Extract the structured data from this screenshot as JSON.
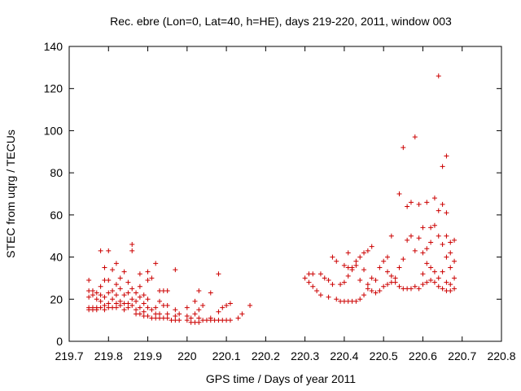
{
  "chart_data": {
    "type": "scatter",
    "title": "Rec. ebre (Lon=0, Lat=40, h=HE), days 219-220, 2011, window 003",
    "xlabel": "GPS time / Days of year 2011",
    "ylabel": "STEC from uqrg / TECUs",
    "xlim": [
      219.7,
      220.8
    ],
    "ylim": [
      0,
      140
    ],
    "xticks": [
      "219.7",
      "219.8",
      "219.9",
      "220",
      "220.1",
      "220.2",
      "220.3",
      "220.4",
      "220.5",
      "220.6",
      "220.7",
      "220.8"
    ],
    "yticks": [
      "0",
      "20",
      "40",
      "60",
      "80",
      "100",
      "120",
      "140"
    ],
    "grid": false,
    "marker": "+",
    "color": "#cc0000",
    "series": [
      {
        "values": [
          [
            219.75,
            29
          ],
          [
            219.75,
            24
          ],
          [
            219.75,
            21
          ],
          [
            219.75,
            16
          ],
          [
            219.75,
            15
          ],
          [
            219.76,
            24
          ],
          [
            219.76,
            22
          ],
          [
            219.76,
            16
          ],
          [
            219.76,
            15
          ],
          [
            219.77,
            23
          ],
          [
            219.77,
            20
          ],
          [
            219.77,
            16
          ],
          [
            219.77,
            15
          ],
          [
            219.78,
            43
          ],
          [
            219.78,
            26
          ],
          [
            219.78,
            22
          ],
          [
            219.78,
            19
          ],
          [
            219.78,
            16
          ],
          [
            219.79,
            35
          ],
          [
            219.79,
            29
          ],
          [
            219.79,
            21
          ],
          [
            219.79,
            17
          ],
          [
            219.79,
            15
          ],
          [
            219.8,
            43
          ],
          [
            219.8,
            29
          ],
          [
            219.8,
            23
          ],
          [
            219.8,
            18
          ],
          [
            219.8,
            16
          ],
          [
            219.81,
            34
          ],
          [
            219.81,
            24
          ],
          [
            219.81,
            20
          ],
          [
            219.81,
            16
          ],
          [
            219.82,
            37
          ],
          [
            219.82,
            27
          ],
          [
            219.82,
            22
          ],
          [
            219.82,
            18
          ],
          [
            219.82,
            16
          ],
          [
            219.83,
            30
          ],
          [
            219.83,
            25
          ],
          [
            219.83,
            19
          ],
          [
            219.83,
            17
          ],
          [
            219.84,
            33
          ],
          [
            219.84,
            22
          ],
          [
            219.84,
            18
          ],
          [
            219.84,
            15
          ],
          [
            219.85,
            28
          ],
          [
            219.85,
            23
          ],
          [
            219.85,
            18
          ],
          [
            219.85,
            16
          ],
          [
            219.86,
            46
          ],
          [
            219.86,
            43
          ],
          [
            219.86,
            25
          ],
          [
            219.86,
            20
          ],
          [
            219.86,
            17
          ],
          [
            219.87,
            23
          ],
          [
            219.87,
            19
          ],
          [
            219.87,
            15
          ],
          [
            219.87,
            13
          ],
          [
            219.88,
            32
          ],
          [
            219.88,
            26
          ],
          [
            219.88,
            21
          ],
          [
            219.88,
            16
          ],
          [
            219.88,
            13
          ],
          [
            219.89,
            22
          ],
          [
            219.89,
            18
          ],
          [
            219.89,
            14
          ],
          [
            219.89,
            12
          ],
          [
            219.9,
            33
          ],
          [
            219.9,
            29
          ],
          [
            219.9,
            20
          ],
          [
            219.9,
            16
          ],
          [
            219.9,
            12
          ],
          [
            219.91,
            30
          ],
          [
            219.91,
            15
          ],
          [
            219.91,
            11
          ],
          [
            219.92,
            37
          ],
          [
            219.92,
            16
          ],
          [
            219.92,
            13
          ],
          [
            219.92,
            11
          ],
          [
            219.93,
            24
          ],
          [
            219.93,
            19
          ],
          [
            219.93,
            13
          ],
          [
            219.93,
            11
          ],
          [
            219.94,
            24
          ],
          [
            219.94,
            17
          ],
          [
            219.94,
            11
          ],
          [
            219.95,
            24
          ],
          [
            219.95,
            17
          ],
          [
            219.95,
            13
          ],
          [
            219.95,
            11
          ],
          [
            219.96,
            10
          ],
          [
            219.97,
            34
          ],
          [
            219.97,
            15
          ],
          [
            219.97,
            12
          ],
          [
            219.97,
            10
          ],
          [
            219.98,
            13
          ],
          [
            219.98,
            10
          ],
          [
            220.0,
            16
          ],
          [
            220.0,
            12
          ],
          [
            220.0,
            10
          ],
          [
            220.01,
            11
          ],
          [
            220.01,
            9
          ],
          [
            220.02,
            19
          ],
          [
            220.02,
            13
          ],
          [
            220.02,
            9
          ],
          [
            220.03,
            24
          ],
          [
            220.03,
            15
          ],
          [
            220.03,
            11
          ],
          [
            220.03,
            9
          ],
          [
            220.04,
            17
          ],
          [
            220.04,
            10
          ],
          [
            220.05,
            10
          ],
          [
            220.06,
            23
          ],
          [
            220.06,
            11
          ],
          [
            220.06,
            10
          ],
          [
            220.07,
            10
          ],
          [
            220.08,
            32
          ],
          [
            220.08,
            14
          ],
          [
            220.08,
            10
          ],
          [
            220.09,
            16
          ],
          [
            220.09,
            10
          ],
          [
            220.1,
            17
          ],
          [
            220.1,
            10
          ],
          [
            220.11,
            18
          ],
          [
            220.11,
            10
          ],
          [
            220.13,
            11
          ],
          [
            220.14,
            13
          ],
          [
            220.16,
            17
          ],
          [
            220.3,
            30
          ],
          [
            220.31,
            28
          ],
          [
            220.31,
            32
          ],
          [
            220.32,
            26
          ],
          [
            220.32,
            32
          ],
          [
            220.33,
            24
          ],
          [
            220.34,
            22
          ],
          [
            220.34,
            32
          ],
          [
            220.35,
            30
          ],
          [
            220.36,
            21
          ],
          [
            220.36,
            29
          ],
          [
            220.37,
            40
          ],
          [
            220.37,
            27
          ],
          [
            220.38,
            20
          ],
          [
            220.38,
            38
          ],
          [
            220.39,
            27
          ],
          [
            220.39,
            19
          ],
          [
            220.4,
            36
          ],
          [
            220.4,
            28
          ],
          [
            220.4,
            19
          ],
          [
            220.41,
            42
          ],
          [
            220.41,
            31
          ],
          [
            220.41,
            35
          ],
          [
            220.41,
            19
          ],
          [
            220.42,
            35
          ],
          [
            220.42,
            34
          ],
          [
            220.42,
            19
          ],
          [
            220.43,
            38
          ],
          [
            220.43,
            36
          ],
          [
            220.43,
            19
          ],
          [
            220.44,
            40
          ],
          [
            220.44,
            29
          ],
          [
            220.44,
            20
          ],
          [
            220.45,
            42
          ],
          [
            220.45,
            34
          ],
          [
            220.45,
            22
          ],
          [
            220.46,
            43
          ],
          [
            220.46,
            27
          ],
          [
            220.46,
            25
          ],
          [
            220.47,
            45
          ],
          [
            220.47,
            30
          ],
          [
            220.47,
            24
          ],
          [
            220.48,
            29
          ],
          [
            220.48,
            23
          ],
          [
            220.49,
            35
          ],
          [
            220.49,
            24
          ],
          [
            220.5,
            38
          ],
          [
            220.5,
            26
          ],
          [
            220.51,
            40
          ],
          [
            220.51,
            33
          ],
          [
            220.51,
            27
          ],
          [
            220.52,
            50
          ],
          [
            220.52,
            31
          ],
          [
            220.52,
            28
          ],
          [
            220.53,
            30
          ],
          [
            220.53,
            28
          ],
          [
            220.54,
            70
          ],
          [
            220.54,
            35
          ],
          [
            220.54,
            26
          ],
          [
            220.55,
            92
          ],
          [
            220.55,
            39
          ],
          [
            220.55,
            25
          ],
          [
            220.56,
            64
          ],
          [
            220.56,
            48
          ],
          [
            220.56,
            25
          ],
          [
            220.57,
            66
          ],
          [
            220.57,
            50
          ],
          [
            220.57,
            25
          ],
          [
            220.58,
            97
          ],
          [
            220.58,
            43
          ],
          [
            220.58,
            26
          ],
          [
            220.59,
            65
          ],
          [
            220.59,
            49
          ],
          [
            220.59,
            25
          ],
          [
            220.6,
            54
          ],
          [
            220.6,
            42
          ],
          [
            220.6,
            32
          ],
          [
            220.6,
            27
          ],
          [
            220.61,
            66
          ],
          [
            220.61,
            44
          ],
          [
            220.61,
            37
          ],
          [
            220.61,
            28
          ],
          [
            220.62,
            54
          ],
          [
            220.62,
            47
          ],
          [
            220.62,
            35
          ],
          [
            220.62,
            29
          ],
          [
            220.63,
            68
          ],
          [
            220.63,
            55
          ],
          [
            220.63,
            33
          ],
          [
            220.63,
            28
          ],
          [
            220.64,
            126
          ],
          [
            220.64,
            62
          ],
          [
            220.64,
            50
          ],
          [
            220.64,
            30
          ],
          [
            220.64,
            26
          ],
          [
            220.65,
            83
          ],
          [
            220.65,
            65
          ],
          [
            220.65,
            46
          ],
          [
            220.65,
            33
          ],
          [
            220.65,
            25
          ],
          [
            220.66,
            88
          ],
          [
            220.66,
            61
          ],
          [
            220.66,
            50
          ],
          [
            220.66,
            40
          ],
          [
            220.66,
            28
          ],
          [
            220.66,
            24
          ],
          [
            220.67,
            47
          ],
          [
            220.67,
            42
          ],
          [
            220.67,
            35
          ],
          [
            220.67,
            27
          ],
          [
            220.67,
            24
          ],
          [
            220.68,
            48
          ],
          [
            220.68,
            38
          ],
          [
            220.68,
            30
          ],
          [
            220.68,
            25
          ]
        ]
      }
    ]
  }
}
